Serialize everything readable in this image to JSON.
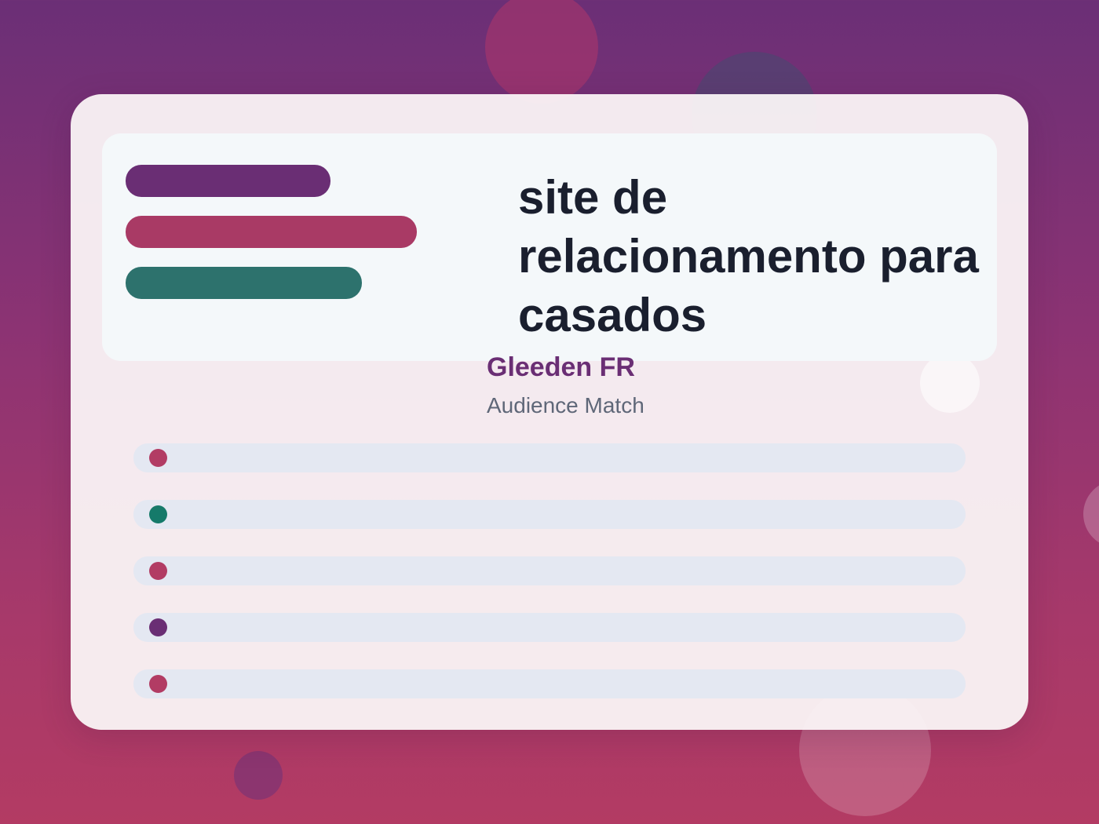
{
  "title": "site de relacionamento para casados",
  "brand": "Gleeden FR",
  "subtitle": "Audience Match",
  "colors": {
    "purple": "#6a2e74",
    "rose": "#a93a65",
    "teal": "#2d726d",
    "green": "#157a6a",
    "text_dark": "#1a1f2e"
  },
  "list_items": [
    {
      "dot_color": "#b23c64"
    },
    {
      "dot_color": "#157a6a"
    },
    {
      "dot_color": "#b23c64"
    },
    {
      "dot_color": "#6a2e74"
    },
    {
      "dot_color": "#b23c64"
    }
  ]
}
